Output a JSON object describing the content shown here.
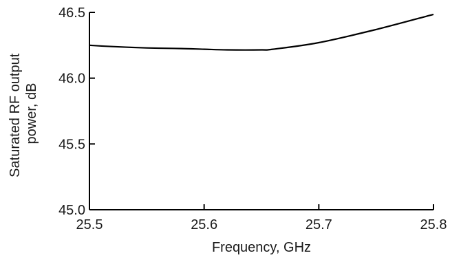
{
  "chart_data": {
    "type": "line",
    "title": "",
    "xlabel": "Frequency, GHz",
    "ylabel_lines": [
      "Saturated RF output",
      "power, dB"
    ],
    "xlim": [
      25.5,
      25.8
    ],
    "ylim": [
      45.0,
      46.5
    ],
    "x_ticks": [
      "25.5",
      "25.6",
      "25.7",
      "25.8"
    ],
    "y_ticks": [
      "45.0",
      "45.5",
      "46.0",
      "46.5"
    ],
    "grid": false,
    "legend": "none",
    "line_color": "#000000",
    "series": [
      {
        "x": [
          25.5,
          25.52,
          25.55,
          25.58,
          25.6,
          25.62,
          25.65,
          25.66,
          25.7,
          25.75,
          25.8
        ],
        "values": [
          46.25,
          46.24,
          46.23,
          46.225,
          46.22,
          46.215,
          46.215,
          46.22,
          46.27,
          46.37,
          46.485
        ]
      }
    ]
  }
}
